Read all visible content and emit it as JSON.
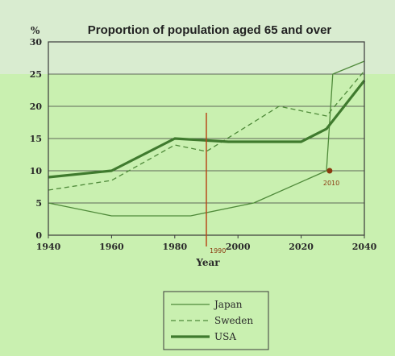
{
  "chart_data": {
    "type": "line",
    "title": "Proportion of population aged 65 and over",
    "ylabel": "%",
    "xlabel": "Year",
    "xlim": [
      1940,
      2040
    ],
    "ylim": [
      0,
      30
    ],
    "xticks": [
      "1940",
      "1960",
      "1980",
      "2000",
      "2020",
      "2040"
    ],
    "yticks": [
      "0",
      "5",
      "10",
      "15",
      "20",
      "25",
      "30"
    ],
    "grid": "horizontal",
    "legend_position": "bottom",
    "series": [
      {
        "name": "Japan",
        "style": "thin",
        "color": "#4f8a3a",
        "points": [
          [
            1940,
            5
          ],
          [
            1960,
            3
          ],
          [
            1985,
            3
          ],
          [
            2005,
            5
          ],
          [
            2028,
            10
          ],
          [
            2030,
            25
          ],
          [
            2040,
            27
          ]
        ]
      },
      {
        "name": "Sweden",
        "style": "dashed",
        "color": "#4f8a3a",
        "points": [
          [
            1940,
            7
          ],
          [
            1960,
            8.5
          ],
          [
            1980,
            14
          ],
          [
            1990,
            13
          ],
          [
            2013,
            20
          ],
          [
            2028,
            18.5
          ],
          [
            2040,
            25.5
          ]
        ]
      },
      {
        "name": "USA",
        "style": "thick",
        "color": "#3f7a2e",
        "points": [
          [
            1940,
            9
          ],
          [
            1960,
            10
          ],
          [
            1980,
            15
          ],
          [
            1997,
            14.5
          ],
          [
            2020,
            14.5
          ],
          [
            2028,
            16.5
          ],
          [
            2040,
            24
          ]
        ]
      }
    ],
    "annotations": [
      {
        "text": "1990",
        "x": 1990,
        "color": "#b84a1a"
      },
      {
        "text": "2010",
        "x": 2029,
        "y": 10,
        "color": "#8a3a10"
      }
    ]
  }
}
